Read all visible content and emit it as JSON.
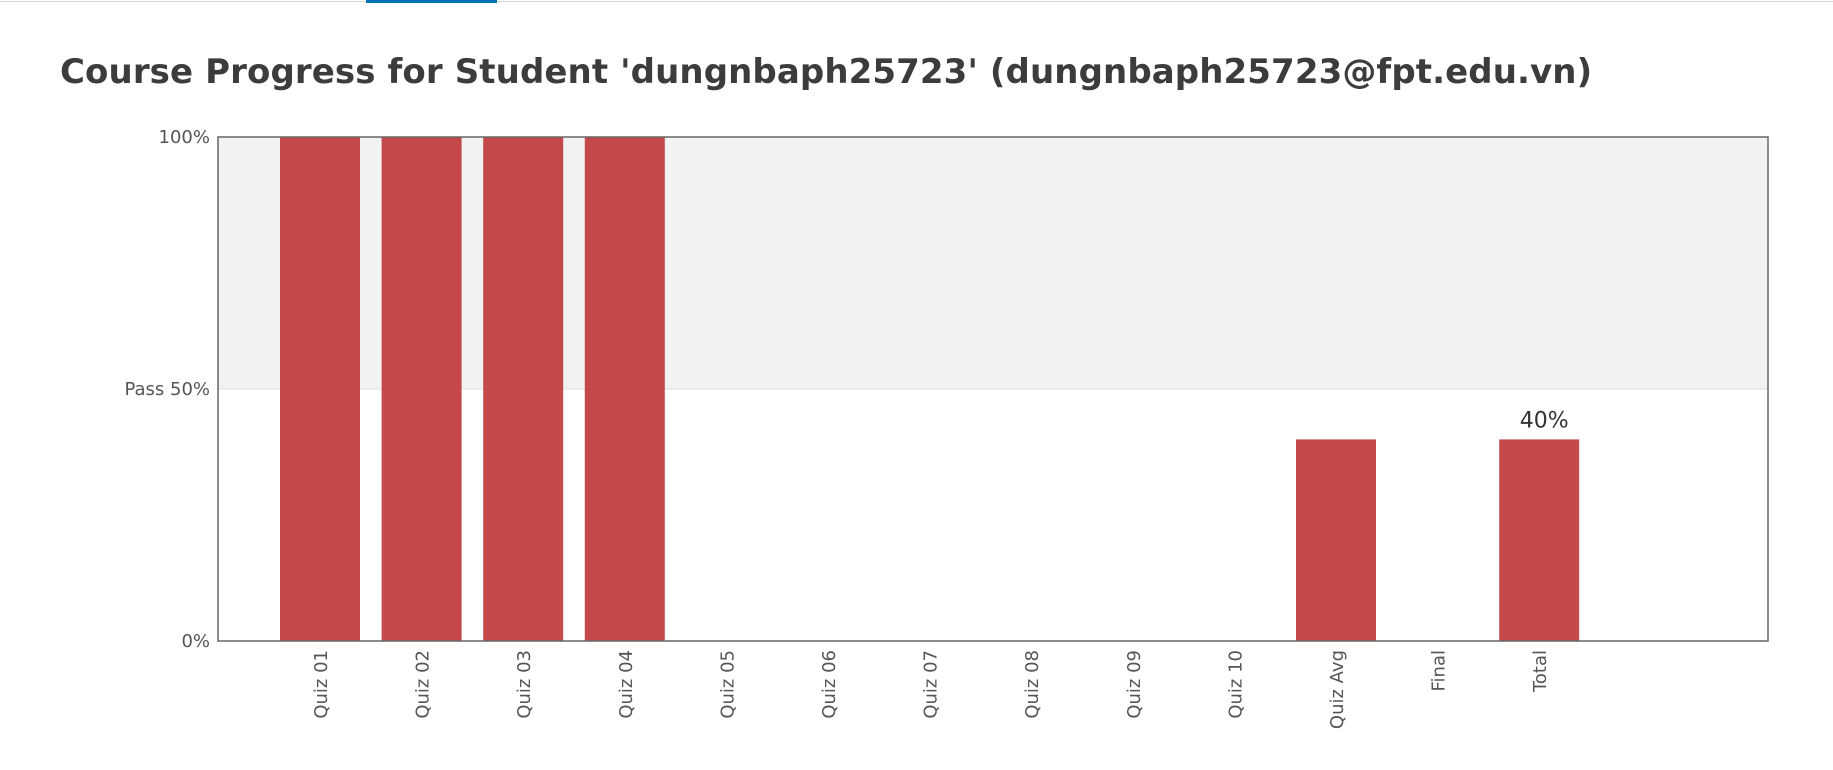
{
  "page": {
    "title": "Course Progress for Student 'dungnbaph25723' (dungnbaph25723@fpt.edu.vn)"
  },
  "colors": {
    "bar": "#c0393b",
    "pass_zone": "#f2f2f2",
    "accent_tab": "#0075b4",
    "axis": "#666666"
  },
  "chart_data": {
    "type": "bar",
    "title": "",
    "xlabel": "",
    "ylabel": "",
    "ylim": [
      0,
      100
    ],
    "y_ticks": [
      {
        "value": 100,
        "label": "100%"
      },
      {
        "value": 50,
        "label": "Pass 50%"
      },
      {
        "value": 0,
        "label": "0%"
      }
    ],
    "pass_threshold": 50,
    "categories": [
      "Quiz 01",
      "Quiz 02",
      "Quiz 03",
      "Quiz 04",
      "Quiz 05",
      "Quiz 06",
      "Quiz 07",
      "Quiz 08",
      "Quiz 09",
      "Quiz 10",
      "Quiz Avg",
      "Final",
      "Total"
    ],
    "values": [
      100,
      100,
      100,
      100,
      0,
      0,
      0,
      0,
      0,
      0,
      40,
      0,
      40
    ],
    "data_labels": [
      {
        "category": "Total",
        "label": "40%"
      }
    ],
    "grid": false,
    "legend": "none"
  }
}
